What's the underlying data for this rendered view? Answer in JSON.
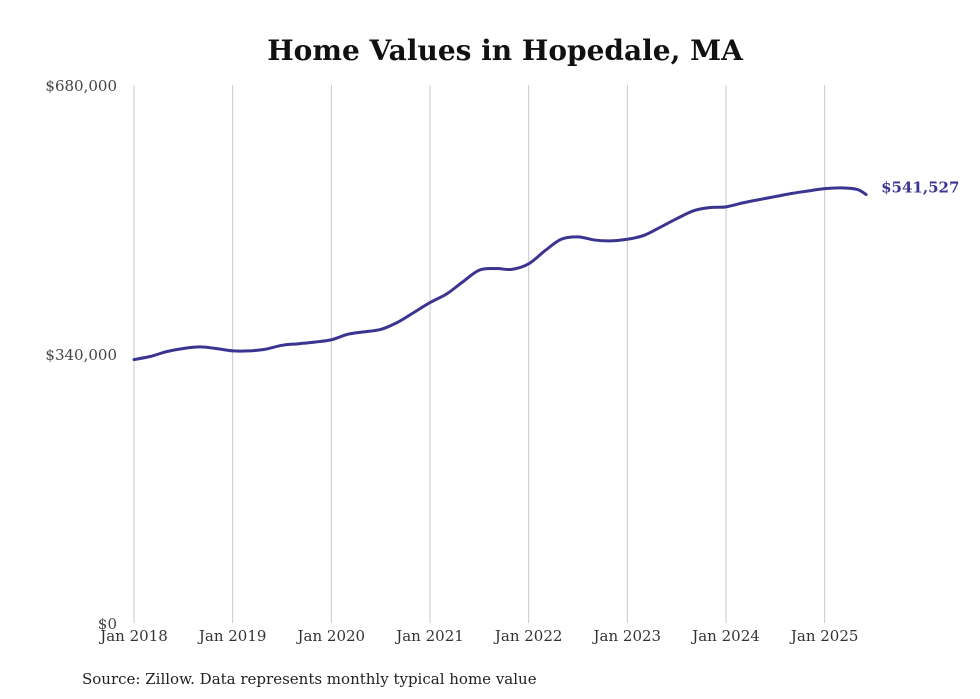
{
  "chart_data": {
    "type": "line",
    "title": "Home Values in Hopedale, MA",
    "source": "Source: Zillow. Data represents monthly typical home value",
    "ylim": [
      0,
      680000
    ],
    "yticks": [
      {
        "value": 0,
        "label": "$0"
      },
      {
        "value": 340000,
        "label": "$340,000"
      },
      {
        "value": 680000,
        "label": "$680,000"
      }
    ],
    "xlim": [
      2018.0,
      2025.5
    ],
    "xticks": [
      {
        "value": 2018,
        "label": "Jan 2018"
      },
      {
        "value": 2019,
        "label": "Jan 2019"
      },
      {
        "value": 2020,
        "label": "Jan 2020"
      },
      {
        "value": 2021,
        "label": "Jan 2021"
      },
      {
        "value": 2022,
        "label": "Jan 2022"
      },
      {
        "value": 2023,
        "label": "Jan 2023"
      },
      {
        "value": 2024,
        "label": "Jan 2024"
      },
      {
        "value": 2025,
        "label": "Jan 2025"
      }
    ],
    "grid": "vertical",
    "line_color": "#3b3591",
    "end_label": "$541,527",
    "series": [
      {
        "points": [
          [
            2018.0,
            333000
          ],
          [
            2018.17,
            337000
          ],
          [
            2018.33,
            343000
          ],
          [
            2018.5,
            347000
          ],
          [
            2018.67,
            349000
          ],
          [
            2018.83,
            347000
          ],
          [
            2019.0,
            344000
          ],
          [
            2019.17,
            344000
          ],
          [
            2019.33,
            346000
          ],
          [
            2019.5,
            351000
          ],
          [
            2019.67,
            353000
          ],
          [
            2019.83,
            355000
          ],
          [
            2020.0,
            358000
          ],
          [
            2020.17,
            365000
          ],
          [
            2020.33,
            368000
          ],
          [
            2020.5,
            371000
          ],
          [
            2020.67,
            380000
          ],
          [
            2020.83,
            392000
          ],
          [
            2021.0,
            405000
          ],
          [
            2021.17,
            416000
          ],
          [
            2021.33,
            431000
          ],
          [
            2021.5,
            446000
          ],
          [
            2021.67,
            448000
          ],
          [
            2021.83,
            447000
          ],
          [
            2022.0,
            454000
          ],
          [
            2022.17,
            471000
          ],
          [
            2022.33,
            485000
          ],
          [
            2022.5,
            488000
          ],
          [
            2022.67,
            484000
          ],
          [
            2022.83,
            483000
          ],
          [
            2023.0,
            485000
          ],
          [
            2023.17,
            490000
          ],
          [
            2023.33,
            500000
          ],
          [
            2023.5,
            511000
          ],
          [
            2023.67,
            521000
          ],
          [
            2023.83,
            525000
          ],
          [
            2024.0,
            526000
          ],
          [
            2024.17,
            531000
          ],
          [
            2024.33,
            535000
          ],
          [
            2024.5,
            539000
          ],
          [
            2024.67,
            543000
          ],
          [
            2024.83,
            546000
          ],
          [
            2025.0,
            549000
          ],
          [
            2025.17,
            550000
          ],
          [
            2025.33,
            548000
          ],
          [
            2025.42,
            541527
          ]
        ]
      }
    ]
  }
}
